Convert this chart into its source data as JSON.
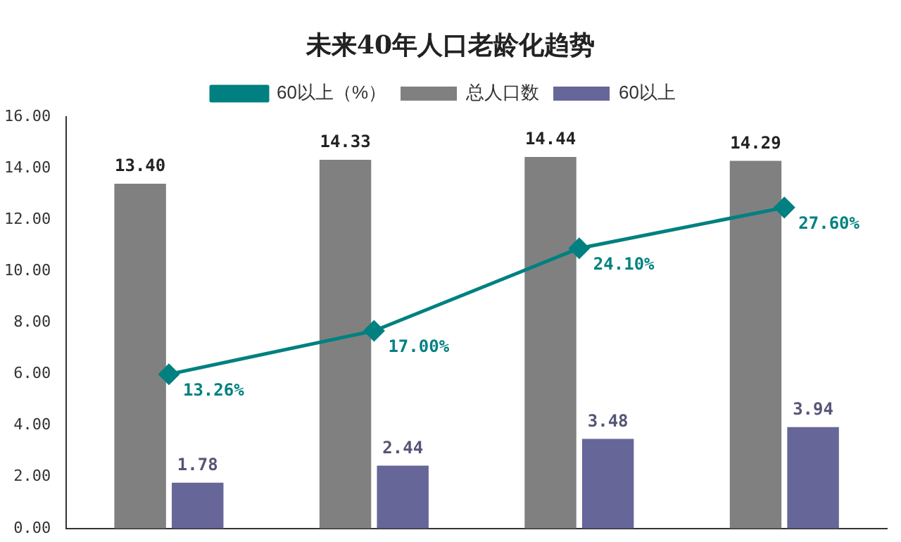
{
  "chart_data": {
    "type": "bar",
    "title": "未来40年人口老龄化趋势",
    "categories": [
      null,
      null,
      null,
      null
    ],
    "series": [
      {
        "name": "总人口数",
        "color": "#808080",
        "values": [
          13.4,
          14.33,
          14.44,
          14.29
        ],
        "value_labels": [
          "13.40",
          "14.33",
          "14.44",
          "14.29"
        ]
      },
      {
        "name": "60以上",
        "color": "#666699",
        "values": [
          1.78,
          2.44,
          3.48,
          3.94
        ],
        "value_labels": [
          "1.78",
          "2.44",
          "3.48",
          "3.94"
        ]
      },
      {
        "name": "60以上（%）",
        "type": "line",
        "axis": "y2",
        "color": "#008080",
        "values": [
          13.26,
          17.0,
          24.1,
          27.6
        ],
        "value_labels": [
          "13.26%",
          "17.00%",
          "24.10%",
          "27.60%"
        ]
      }
    ],
    "ylim": [
      0,
      16
    ],
    "yticks": [
      {
        "value": 0,
        "label": "0.00"
      },
      {
        "value": 2,
        "label": "2.00"
      },
      {
        "value": 4,
        "label": "4.00"
      },
      {
        "value": 6,
        "label": "6.00"
      },
      {
        "value": 8,
        "label": "8.00"
      },
      {
        "value": 10,
        "label": "10.00"
      },
      {
        "value": 12,
        "label": "12.00"
      },
      {
        "value": 14,
        "label": "14.00"
      },
      {
        "value": 16,
        "label": "16.00"
      }
    ],
    "y2lim": [
      0,
      35.4
    ],
    "tick_labels": "y",
    "grid": false,
    "legend": "top",
    "marker": "diamond"
  }
}
